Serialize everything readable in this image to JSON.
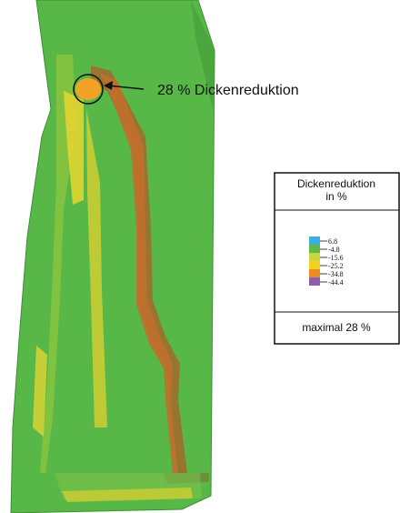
{
  "annotation": {
    "text": "28 % Dickenreduktion"
  },
  "legend": {
    "title_line1": "Dickenreduktion",
    "title_line2": "in %",
    "scale_labels": [
      "6.8",
      "-4.8",
      "-15.6",
      "-25.2",
      "-34.8",
      "-44.4"
    ],
    "footer": "maximal 28 %"
  }
}
